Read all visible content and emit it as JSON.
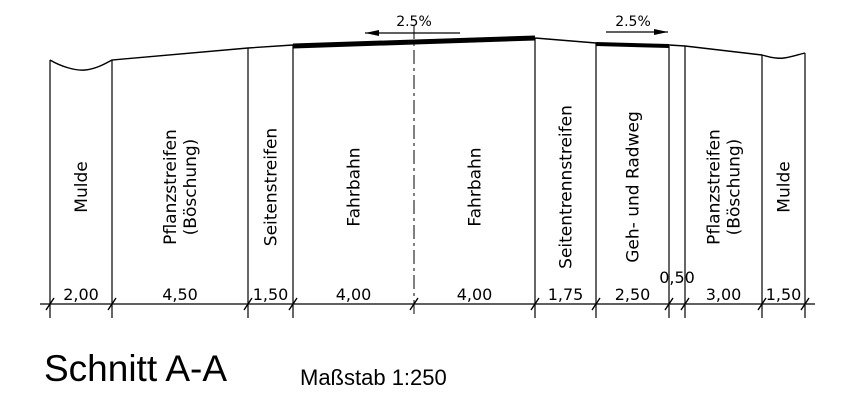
{
  "section": {
    "title": "Schnitt A-A",
    "scale": "Maßstab 1:250"
  },
  "slopes": [
    {
      "label": "2.5%",
      "direction": "left"
    },
    {
      "label": "2.5%",
      "direction": "right"
    }
  ],
  "strips": [
    {
      "name": "Mulde",
      "width": "2,00"
    },
    {
      "name": "Pflanzstreifen",
      "name2": "(Böschung)",
      "width": "4,50"
    },
    {
      "name": "Seitenstreifen",
      "width": "1,50"
    },
    {
      "name": "Fahrbahn",
      "width": "4,00"
    },
    {
      "name": "Fahrbahn",
      "width": "4,00"
    },
    {
      "name": "Seitentrennstreifen",
      "width": "1,75"
    },
    {
      "name": "Geh- und Radweg",
      "width": "2,50"
    },
    {
      "name": "",
      "width": "0,50"
    },
    {
      "name": "Pflanzstreifen",
      "name2": "(Böschung)",
      "width": "3,00"
    },
    {
      "name": "Mulde",
      "width": "1,50"
    }
  ]
}
